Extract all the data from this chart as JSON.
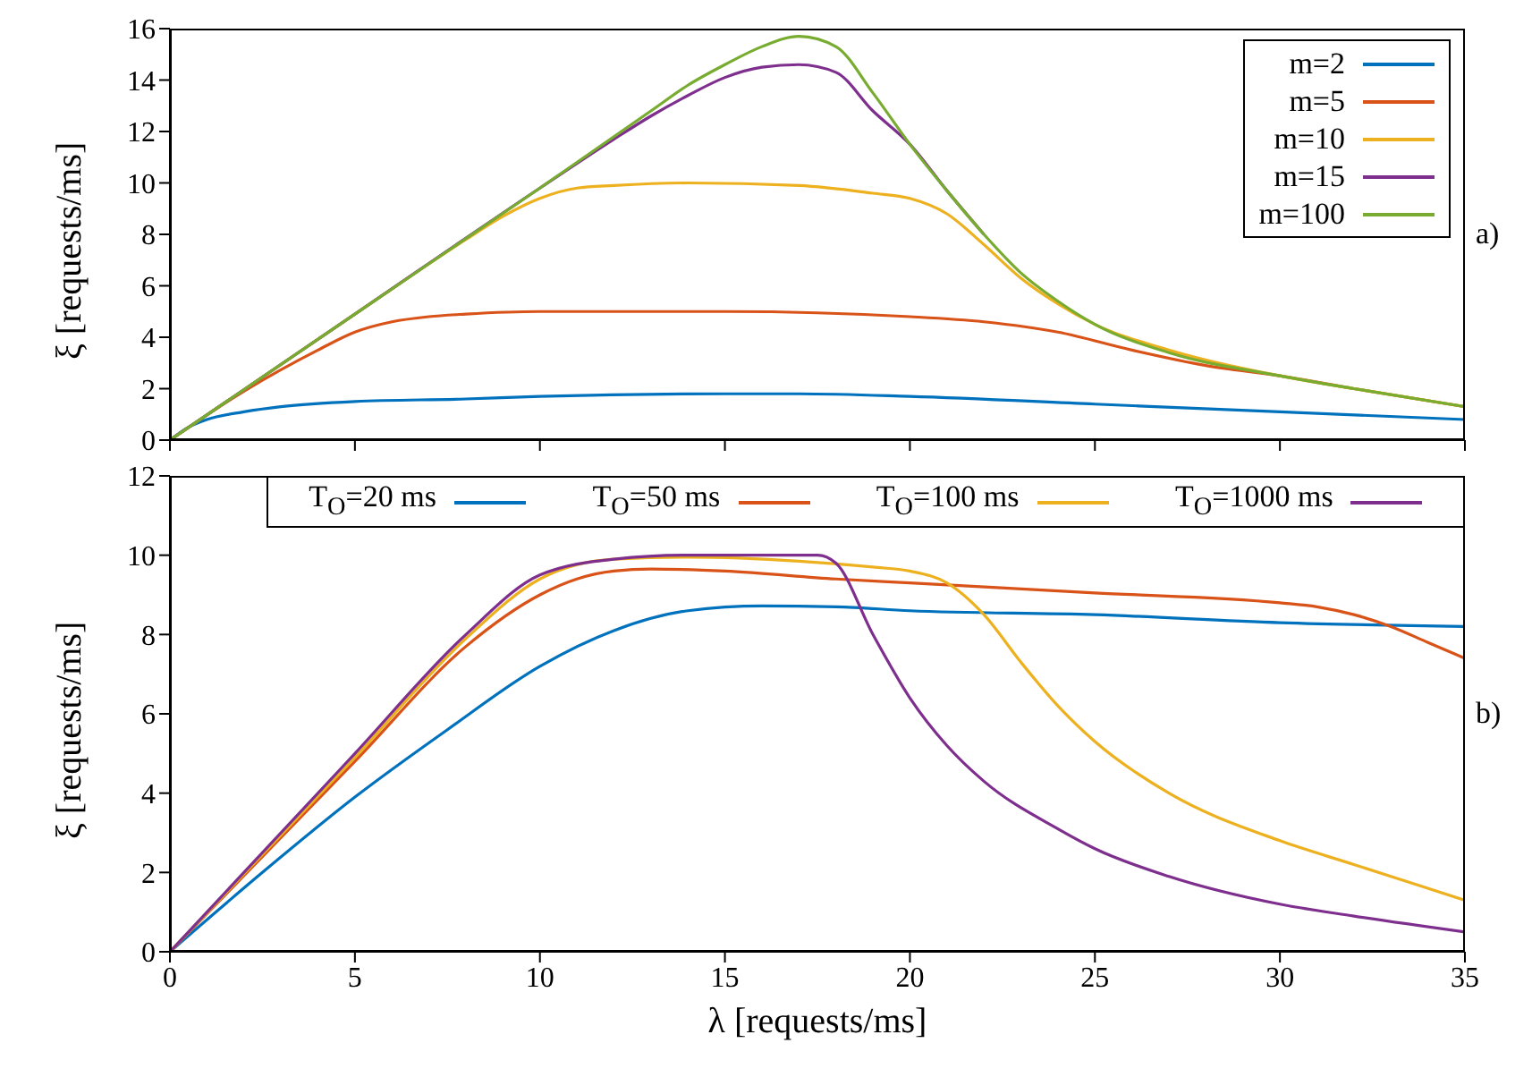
{
  "chart_data": [
    {
      "type": "line",
      "ylabel": "ξ [requests/ms]",
      "xlim": [
        0,
        35
      ],
      "xticks": [
        0,
        5,
        10,
        15,
        20,
        25,
        30,
        35
      ],
      "ylim": [
        0,
        16
      ],
      "yticks": [
        0,
        2,
        4,
        6,
        8,
        10,
        12,
        14,
        16
      ],
      "tick_labels": "y",
      "legend": "top right",
      "grid": false,
      "annotations": [
        "a)"
      ],
      "series": [
        {
          "name": "m=2",
          "color": "#0072bd",
          "x": [
            0,
            0.5,
            1,
            2,
            3,
            5,
            8,
            10,
            15,
            17,
            20,
            25,
            30,
            35
          ],
          "values": [
            0,
            0.5,
            0.8,
            1.1,
            1.3,
            1.5,
            1.6,
            1.7,
            1.8,
            1.8,
            1.7,
            1.4,
            1.1,
            0.8
          ]
        },
        {
          "name": "m=5",
          "color": "#d95319",
          "x": [
            0,
            2,
            4,
            5,
            6,
            7,
            8,
            10,
            15,
            20,
            22,
            24,
            26,
            28,
            30,
            32,
            35
          ],
          "values": [
            0,
            1.9,
            3.5,
            4.2,
            4.6,
            4.8,
            4.9,
            5.0,
            5.0,
            4.8,
            4.6,
            4.2,
            3.5,
            2.9,
            2.5,
            2.0,
            1.3
          ]
        },
        {
          "name": "m=10",
          "color": "#edb120",
          "x": [
            0,
            5,
            8,
            9,
            10,
            11,
            12,
            14,
            17,
            19,
            20,
            21,
            22,
            23,
            24,
            25,
            27,
            30,
            32,
            35
          ],
          "values": [
            0,
            4.9,
            7.8,
            8.7,
            9.4,
            9.8,
            9.9,
            10.0,
            9.9,
            9.6,
            9.4,
            8.8,
            7.6,
            6.3,
            5.3,
            4.5,
            3.5,
            2.5,
            2.0,
            1.3
          ]
        },
        {
          "name": "m=15",
          "color": "#7e2f8e",
          "x": [
            0,
            5,
            10,
            12,
            13,
            14,
            15,
            16,
            17,
            18,
            19,
            20,
            21,
            22
          ],
          "values": [
            0,
            4.9,
            9.8,
            11.7,
            12.6,
            13.4,
            14.1,
            14.5,
            14.6,
            14.3,
            12.8,
            11.5,
            9.7,
            8.0
          ]
        },
        {
          "name": "m=100",
          "color": "#77ac30",
          "x": [
            0,
            5,
            10,
            13,
            14,
            15,
            16,
            17,
            18,
            19,
            20,
            21,
            22,
            23,
            24,
            25,
            27,
            30,
            32,
            35
          ],
          "values": [
            0,
            4.9,
            9.8,
            12.8,
            13.8,
            14.6,
            15.3,
            15.7,
            15.3,
            13.5,
            11.5,
            9.7,
            8.0,
            6.5,
            5.4,
            4.5,
            3.4,
            2.5,
            2.0,
            1.3
          ]
        }
      ]
    },
    {
      "type": "line",
      "xlabel": "λ [requests/ms]",
      "ylabel": "ξ [requests/ms]",
      "xlim": [
        0,
        35
      ],
      "xticks": [
        0,
        5,
        10,
        15,
        20,
        25,
        30,
        35
      ],
      "ylim": [
        0,
        12
      ],
      "yticks": [
        0,
        2,
        4,
        6,
        8,
        10,
        12
      ],
      "legend": "top",
      "grid": false,
      "annotations": [
        "b)"
      ],
      "series": [
        {
          "name": "T$_{O}$=20 ms",
          "color": "#0072bd",
          "x": [
            0,
            2.5,
            5,
            7.5,
            10,
            12,
            14,
            16,
            18,
            20,
            25,
            30,
            35
          ],
          "values": [
            0,
            2,
            3.9,
            5.6,
            7.2,
            8.1,
            8.6,
            8.72,
            8.7,
            8.6,
            8.5,
            8.3,
            8.2
          ]
        },
        {
          "name": "T$_{O}$=50 ms",
          "color": "#d95319",
          "x": [
            0,
            5,
            8,
            10,
            11,
            12,
            13,
            15,
            18,
            20,
            25,
            30,
            31,
            32,
            33,
            34,
            35
          ],
          "values": [
            0,
            4.8,
            7.7,
            9.0,
            9.4,
            9.6,
            9.65,
            9.6,
            9.4,
            9.3,
            9.05,
            8.8,
            8.7,
            8.5,
            8.2,
            7.8,
            7.4
          ]
        },
        {
          "name": "T$_{O}$=100 ms",
          "color": "#edb120",
          "x": [
            0,
            5,
            8,
            10,
            12,
            14,
            17,
            19,
            20,
            21,
            22,
            23,
            24,
            25,
            27,
            30,
            32,
            35
          ],
          "values": [
            0,
            4.9,
            7.9,
            9.4,
            9.9,
            9.95,
            9.85,
            9.7,
            9.6,
            9.3,
            8.5,
            7.3,
            6.2,
            5.3,
            4.0,
            2.8,
            2.2,
            1.3
          ]
        },
        {
          "name": "T$_{O}$=1000 ms",
          "color": "#7e2f8e",
          "x": [
            0,
            5,
            8,
            10,
            12,
            14,
            17.5,
            18,
            19,
            20,
            21,
            22,
            24,
            25,
            27,
            30,
            32,
            35
          ],
          "values": [
            0,
            5.0,
            8.0,
            9.5,
            9.9,
            10,
            10,
            9.8,
            8.0,
            6.4,
            5.2,
            4.3,
            3.1,
            2.6,
            1.9,
            1.2,
            0.9,
            0.5
          ]
        }
      ]
    }
  ]
}
